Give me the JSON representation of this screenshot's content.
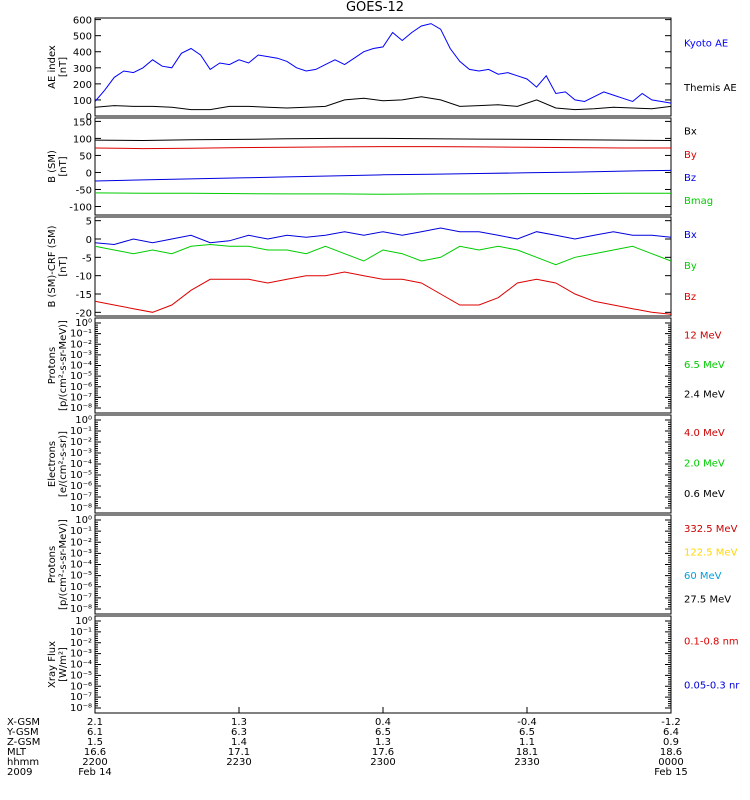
{
  "title": "GOES-12",
  "chart_data": [
    {
      "type": "line",
      "ylabel": [
        "AE index",
        "[nT]"
      ],
      "yticks": [
        0,
        100,
        200,
        300,
        400,
        500,
        600
      ],
      "ylim": [
        0,
        610
      ],
      "xlim": [
        0,
        120
      ],
      "series": [
        {
          "name": "Kyoto AE",
          "color": "#0000ff",
          "x": [
            0,
            2,
            4,
            6,
            8,
            10,
            12,
            14,
            16,
            18,
            20,
            22,
            24,
            26,
            28,
            30,
            32,
            34,
            36,
            38,
            40,
            42,
            44,
            46,
            48,
            50,
            52,
            54,
            56,
            58,
            60,
            62,
            64,
            66,
            68,
            70,
            72,
            74,
            76,
            78,
            80,
            82,
            84,
            86,
            88,
            90,
            92,
            94,
            96,
            98,
            100,
            102,
            104,
            106,
            108,
            110,
            112,
            114,
            116,
            118,
            120
          ],
          "values": [
            90,
            160,
            240,
            280,
            270,
            300,
            350,
            310,
            300,
            390,
            420,
            380,
            290,
            330,
            320,
            350,
            330,
            380,
            370,
            360,
            340,
            300,
            280,
            290,
            320,
            350,
            320,
            360,
            400,
            420,
            430,
            520,
            470,
            520,
            560,
            575,
            540,
            420,
            340,
            290,
            280,
            290,
            260,
            270,
            250,
            230,
            180,
            250,
            140,
            150,
            100,
            90,
            120,
            150,
            130,
            110,
            90,
            140,
            100,
            90,
            80
          ]
        },
        {
          "name": "Themis AE",
          "color": "#000000",
          "x": [
            0,
            4,
            8,
            12,
            16,
            20,
            24,
            28,
            32,
            36,
            40,
            44,
            48,
            52,
            56,
            60,
            64,
            68,
            72,
            76,
            80,
            84,
            88,
            92,
            96,
            100,
            104,
            108,
            112,
            116,
            120
          ],
          "values": [
            55,
            65,
            60,
            60,
            55,
            40,
            40,
            60,
            60,
            55,
            50,
            55,
            60,
            100,
            110,
            95,
            100,
            120,
            100,
            60,
            65,
            70,
            60,
            100,
            50,
            40,
            45,
            55,
            50,
            45,
            60
          ]
        }
      ]
    },
    {
      "type": "line",
      "ylabel": [
        "B (SM)",
        "[nT]"
      ],
      "yticks": [
        -100,
        -50,
        0,
        50,
        100,
        150
      ],
      "ylim": [
        -125,
        160
      ],
      "xlim": [
        0,
        120
      ],
      "series": [
        {
          "name": "Bx",
          "color": "#000000",
          "x": [
            0,
            10,
            20,
            30,
            40,
            50,
            60,
            70,
            80,
            90,
            100,
            110,
            120
          ],
          "values": [
            95,
            94,
            96,
            97,
            99,
            100,
            100,
            99,
            98,
            97,
            96,
            95,
            94
          ]
        },
        {
          "name": "By",
          "color": "#dd0000",
          "x": [
            0,
            10,
            20,
            30,
            40,
            50,
            60,
            70,
            80,
            90,
            100,
            110,
            120
          ],
          "values": [
            72,
            70,
            71,
            73,
            74,
            75,
            76,
            76,
            75,
            74,
            73,
            72,
            72
          ]
        },
        {
          "name": "Bz",
          "color": "#0000dd",
          "x": [
            0,
            10,
            20,
            30,
            40,
            50,
            60,
            70,
            80,
            90,
            100,
            110,
            120
          ],
          "values": [
            -25,
            -22,
            -19,
            -16,
            -13,
            -10,
            -7,
            -5,
            -3,
            -1,
            1,
            4,
            6
          ]
        },
        {
          "name": "Bmag",
          "color": "#00cc00",
          "x": [
            0,
            10,
            20,
            30,
            40,
            50,
            60,
            70,
            80,
            90,
            100,
            110,
            120
          ],
          "values": [
            -60,
            -61,
            -61,
            -62,
            -63,
            -63,
            -64,
            -63,
            -63,
            -62,
            -62,
            -61,
            -61
          ]
        }
      ]
    },
    {
      "type": "line",
      "ylabel": [
        "B (SM)-CRF (SM)",
        "[nT]"
      ],
      "yticks": [
        -20,
        -15,
        -10,
        -5,
        0,
        5
      ],
      "ylim": [
        -21,
        6
      ],
      "xlim": [
        0,
        120
      ],
      "series": [
        {
          "name": "Bx",
          "color": "#0000dd",
          "x": [
            0,
            4,
            8,
            12,
            16,
            20,
            24,
            28,
            32,
            36,
            40,
            44,
            48,
            52,
            56,
            60,
            64,
            68,
            72,
            76,
            80,
            84,
            88,
            92,
            96,
            100,
            104,
            108,
            112,
            116,
            120
          ],
          "values": [
            -1,
            -1.5,
            0,
            -1,
            0,
            1,
            -1,
            -0.5,
            1,
            0,
            1,
            0.5,
            1,
            2,
            1,
            2,
            1,
            2,
            3,
            2,
            2,
            1,
            0,
            2,
            1,
            0,
            1,
            2,
            1,
            1,
            0.5
          ]
        },
        {
          "name": "By",
          "color": "#00cc00",
          "x": [
            0,
            4,
            8,
            12,
            16,
            20,
            24,
            28,
            32,
            36,
            40,
            44,
            48,
            52,
            56,
            60,
            64,
            68,
            72,
            76,
            80,
            84,
            88,
            92,
            96,
            100,
            104,
            108,
            112,
            116,
            120
          ],
          "values": [
            -2,
            -3,
            -4,
            -3,
            -4,
            -2,
            -1.5,
            -2,
            -2,
            -3,
            -3,
            -4,
            -2,
            -4,
            -6,
            -3,
            -4,
            -6,
            -5,
            -2,
            -3,
            -2,
            -3,
            -5,
            -7,
            -5,
            -4,
            -3,
            -2,
            -4,
            -6
          ]
        },
        {
          "name": "Bz",
          "color": "#dd0000",
          "x": [
            0,
            4,
            8,
            12,
            16,
            20,
            24,
            28,
            32,
            36,
            40,
            44,
            48,
            52,
            56,
            60,
            64,
            68,
            72,
            76,
            80,
            84,
            88,
            92,
            96,
            100,
            104,
            108,
            112,
            116,
            120
          ],
          "values": [
            -17,
            -18,
            -19,
            -20,
            -18,
            -14,
            -11,
            -11,
            -11,
            -12,
            -11,
            -10,
            -10,
            -9,
            -10,
            -11,
            -11,
            -12,
            -15,
            -18,
            -18,
            -16,
            -12,
            -11,
            -12,
            -15,
            -17,
            -18,
            -19,
            -20,
            -20.5
          ]
        }
      ]
    },
    {
      "type": "line",
      "ylabel": [
        "Protons",
        "[p/(cm²-s-sr-MeV)]"
      ],
      "ylabel_text": "[p/(cm^2-s-sr-MeV)]",
      "yticks": [
        "10⁻⁸",
        "10⁻⁷",
        "10⁻⁶",
        "10⁻⁵",
        "10⁻⁴",
        "10⁻³",
        "10⁻²",
        "10⁻¹",
        "10⁰"
      ],
      "yscale": "log",
      "series": [
        {
          "name": "12 MeV",
          "color": "#cc0000",
          "values": []
        },
        {
          "name": "6.5 MeV",
          "color": "#00cc00",
          "values": []
        },
        {
          "name": "2.4 MeV",
          "color": "#000000",
          "values": []
        }
      ]
    },
    {
      "type": "line",
      "ylabel": [
        "Electrons",
        "[e/(cm²-s-sr)]"
      ],
      "yticks": [
        "10⁻⁸",
        "10⁻⁷",
        "10⁻⁶",
        "10⁻⁵",
        "10⁻⁴",
        "10⁻³",
        "10⁻²",
        "10⁻¹",
        "10⁰"
      ],
      "yscale": "log",
      "series": [
        {
          "name": "4.0 MeV",
          "color": "#cc0000",
          "values": []
        },
        {
          "name": "2.0 MeV",
          "color": "#00cc00",
          "values": []
        },
        {
          "name": "0.6 MeV",
          "color": "#000000",
          "values": []
        }
      ]
    },
    {
      "type": "line",
      "ylabel": [
        "Protons",
        "[p/(cm²-s-sr-MeV)]"
      ],
      "yticks": [
        "10⁻⁸",
        "10⁻⁷",
        "10⁻⁶",
        "10⁻⁵",
        "10⁻⁴",
        "10⁻³",
        "10⁻²",
        "10⁻¹",
        "10⁰"
      ],
      "yscale": "log",
      "series": [
        {
          "name": "332.5 MeV",
          "color": "#cc0000",
          "values": []
        },
        {
          "name": "122.5 MeV",
          "color": "#ffd700",
          "values": []
        },
        {
          "name": "60 MeV",
          "color": "#00a0e0",
          "values": []
        },
        {
          "name": "27.5 MeV",
          "color": "#000000",
          "values": []
        }
      ]
    },
    {
      "type": "line",
      "ylabel": [
        "Xray Flux",
        "[W/m²]"
      ],
      "yticks": [
        "10⁻⁸",
        "10⁻⁷",
        "10⁻⁶",
        "10⁻⁵",
        "10⁻⁴",
        "10⁻³",
        "10⁻²",
        "10⁻¹",
        "10⁰"
      ],
      "yscale": "log",
      "series": [
        {
          "name": "0.1-0.8 nm",
          "color": "#dd0000",
          "values": []
        },
        {
          "name": "0.05-0.3 nr",
          "color": "#0000dd",
          "values": []
        }
      ]
    }
  ],
  "xaxis": {
    "rows": [
      {
        "label": "X-GSM",
        "values": [
          "2.1",
          "1.3",
          "0.4",
          "-0.4",
          "-1.2"
        ]
      },
      {
        "label": "Y-GSM",
        "values": [
          "6.1",
          "6.3",
          "6.5",
          "6.5",
          "6.4"
        ]
      },
      {
        "label": "Z-GSM",
        "values": [
          "1.5",
          "1.4",
          "1.3",
          "1.1",
          "0.9"
        ]
      },
      {
        "label": "MLT",
        "values": [
          "16.6",
          "17.1",
          "17.6",
          "18.1",
          "18.6"
        ]
      },
      {
        "label": "hhmm",
        "values": [
          "2200",
          "2230",
          "2300",
          "2330",
          "0000"
        ]
      },
      {
        "label": "2009",
        "values": [
          "Feb 14",
          "",
          "",
          "",
          "Feb 15"
        ]
      }
    ]
  }
}
